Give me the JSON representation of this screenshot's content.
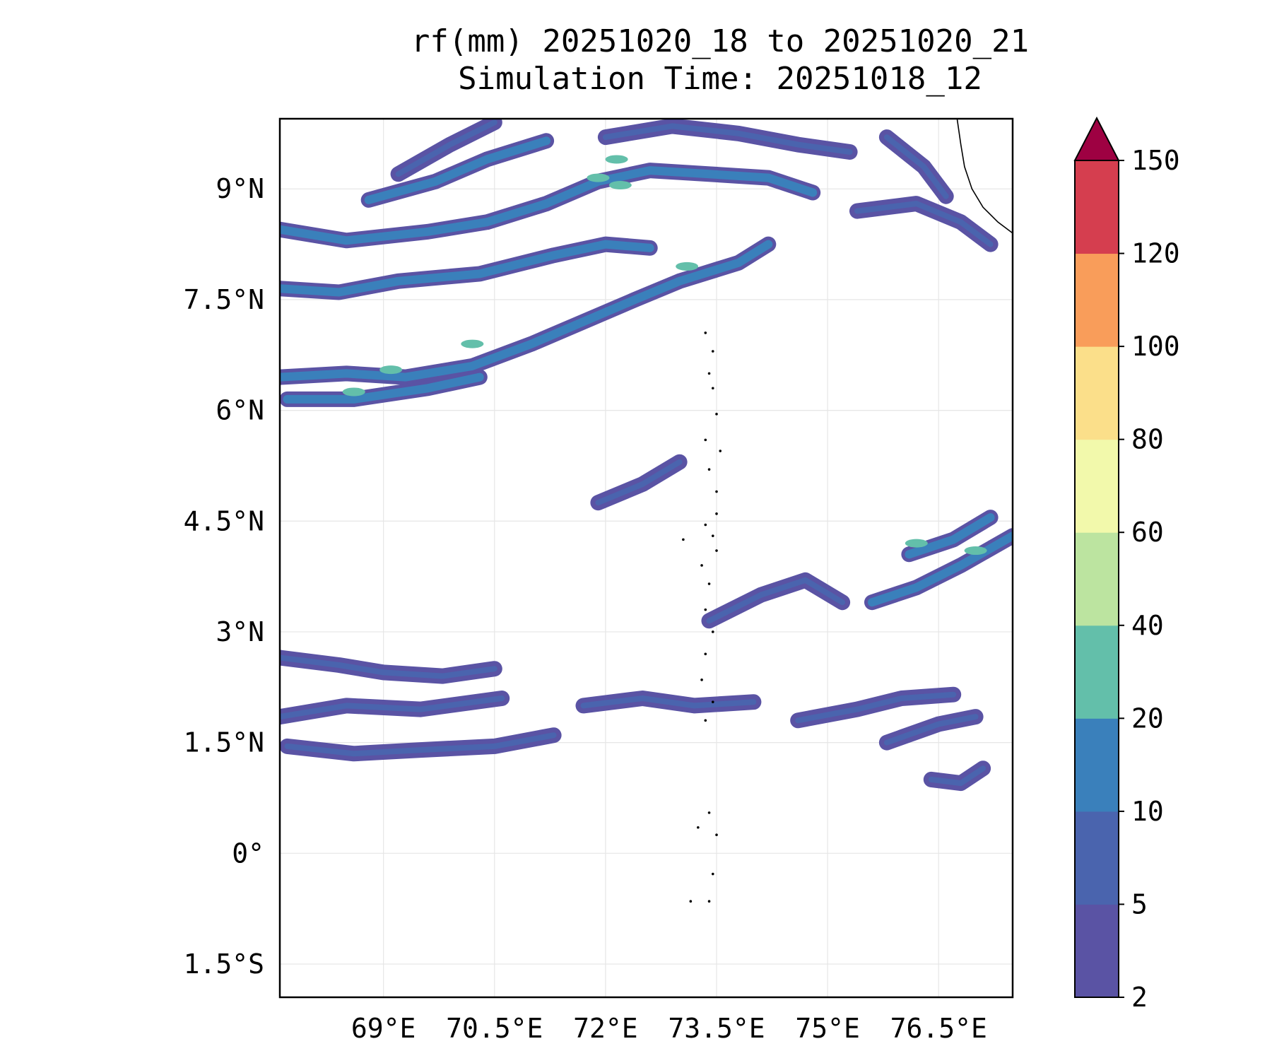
{
  "title": {
    "line1": "rf(mm) 20251020_18 to 20251020_21",
    "line2": "Simulation Time: 20251018_12"
  },
  "map": {
    "lon_range": [
      67.6,
      77.5
    ],
    "lat_range": [
      -1.95,
      9.95
    ],
    "lon_ticks": [
      {
        "value": 69.0,
        "label": "69°E"
      },
      {
        "value": 70.5,
        "label": "70.5°E"
      },
      {
        "value": 72.0,
        "label": "72°E"
      },
      {
        "value": 73.5,
        "label": "73.5°E"
      },
      {
        "value": 75.0,
        "label": "75°E"
      },
      {
        "value": 76.5,
        "label": "76.5°E"
      }
    ],
    "lat_ticks": [
      {
        "value": 9.0,
        "label": "9°N"
      },
      {
        "value": 7.5,
        "label": "7.5°N"
      },
      {
        "value": 6.0,
        "label": "6°N"
      },
      {
        "value": 4.5,
        "label": "4.5°N"
      },
      {
        "value": 3.0,
        "label": "3°N"
      },
      {
        "value": 1.5,
        "label": "1.5°N"
      },
      {
        "value": 0.0,
        "label": "0°"
      },
      {
        "value": -1.5,
        "label": "1.5°S"
      }
    ]
  },
  "colorbar": {
    "levels": [
      "2",
      "5",
      "10",
      "20",
      "40",
      "60",
      "80",
      "100",
      "120",
      "150"
    ],
    "colors": [
      "#5a53a4",
      "#4a64ae",
      "#3a80bb",
      "#63bfaa",
      "#bce4a0",
      "#f2f9ab",
      "#fbdf8a",
      "#f99d5a",
      "#d53e4f"
    ],
    "extend_color": "#9e0142",
    "extend": "max"
  },
  "chart_data": {
    "type": "contour-map",
    "variable": "rf(mm)",
    "rain_bands": [
      {
        "name": "northern-band-1",
        "points": [
          [
            67.6,
            8.45
          ],
          [
            68.5,
            8.3
          ],
          [
            69.6,
            8.42
          ],
          [
            70.4,
            8.55
          ],
          [
            71.2,
            8.8
          ],
          [
            71.9,
            9.1
          ],
          [
            72.6,
            9.25
          ],
          [
            73.4,
            9.2
          ],
          [
            74.2,
            9.15
          ],
          [
            74.8,
            8.95
          ]
        ],
        "intensity": 10
      },
      {
        "name": "northern-band-2",
        "points": [
          [
            67.6,
            7.65
          ],
          [
            68.4,
            7.6
          ],
          [
            69.2,
            7.75
          ],
          [
            70.3,
            7.85
          ],
          [
            71.3,
            8.1
          ],
          [
            72.0,
            8.25
          ],
          [
            72.6,
            8.2
          ]
        ],
        "intensity": 10
      },
      {
        "name": "northern-band-3",
        "points": [
          [
            67.6,
            6.45
          ],
          [
            68.5,
            6.5
          ],
          [
            69.3,
            6.45
          ],
          [
            70.2,
            6.6
          ],
          [
            71.0,
            6.9
          ],
          [
            71.7,
            7.2
          ],
          [
            72.4,
            7.5
          ],
          [
            73.0,
            7.75
          ],
          [
            73.8,
            8.0
          ],
          [
            74.2,
            8.25
          ]
        ],
        "intensity": 10
      },
      {
        "name": "northern-band-4",
        "points": [
          [
            67.7,
            6.15
          ],
          [
            68.6,
            6.15
          ],
          [
            69.6,
            6.3
          ],
          [
            70.3,
            6.45
          ]
        ],
        "intensity": 10
      },
      {
        "name": "northern-band-5",
        "points": [
          [
            68.8,
            8.85
          ],
          [
            69.7,
            9.1
          ],
          [
            70.4,
            9.4
          ],
          [
            71.2,
            9.65
          ]
        ],
        "intensity": 10
      },
      {
        "name": "northern-band-6",
        "points": [
          [
            69.2,
            9.2
          ],
          [
            69.9,
            9.6
          ],
          [
            70.5,
            9.9
          ]
        ],
        "intensity": 5
      },
      {
        "name": "northern-band-7",
        "points": [
          [
            72.0,
            9.7
          ],
          [
            72.9,
            9.85
          ],
          [
            73.8,
            9.75
          ],
          [
            74.6,
            9.6
          ],
          [
            75.3,
            9.5
          ]
        ],
        "intensity": 5
      },
      {
        "name": "northern-band-8",
        "points": [
          [
            75.4,
            8.7
          ],
          [
            76.2,
            8.8
          ],
          [
            76.8,
            8.55
          ],
          [
            77.2,
            8.25
          ]
        ],
        "intensity": 5
      },
      {
        "name": "northern-band-9",
        "points": [
          [
            75.8,
            9.7
          ],
          [
            76.3,
            9.3
          ],
          [
            76.6,
            8.9
          ]
        ],
        "intensity": 5
      },
      {
        "name": "central-streak",
        "points": [
          [
            71.9,
            4.75
          ],
          [
            72.5,
            5.0
          ],
          [
            73.0,
            5.3
          ]
        ],
        "intensity": 5
      },
      {
        "name": "southern-band-1",
        "points": [
          [
            75.6,
            3.4
          ],
          [
            76.2,
            3.6
          ],
          [
            76.8,
            3.9
          ],
          [
            77.5,
            4.3
          ]
        ],
        "intensity": 10
      },
      {
        "name": "southern-band-2",
        "points": [
          [
            76.1,
            4.05
          ],
          [
            76.7,
            4.25
          ],
          [
            77.2,
            4.55
          ]
        ],
        "intensity": 10
      },
      {
        "name": "southern-band-3",
        "points": [
          [
            73.4,
            3.15
          ],
          [
            74.1,
            3.5
          ],
          [
            74.7,
            3.7
          ],
          [
            75.2,
            3.4
          ]
        ],
        "intensity": 5
      },
      {
        "name": "southern-band-4",
        "points": [
          [
            67.6,
            2.65
          ],
          [
            68.4,
            2.55
          ],
          [
            69.0,
            2.45
          ],
          [
            69.8,
            2.4
          ],
          [
            70.5,
            2.5
          ]
        ],
        "intensity": 5
      },
      {
        "name": "southern-band-5",
        "points": [
          [
            67.6,
            1.85
          ],
          [
            68.5,
            2.0
          ],
          [
            69.5,
            1.95
          ],
          [
            70.6,
            2.1
          ]
        ],
        "intensity": 5
      },
      {
        "name": "southern-band-6",
        "points": [
          [
            67.7,
            1.45
          ],
          [
            68.6,
            1.35
          ],
          [
            69.5,
            1.4
          ],
          [
            70.5,
            1.45
          ],
          [
            71.3,
            1.6
          ]
        ],
        "intensity": 5
      },
      {
        "name": "southern-band-7",
        "points": [
          [
            71.7,
            2.0
          ],
          [
            72.5,
            2.1
          ],
          [
            73.2,
            2.0
          ],
          [
            74.0,
            2.05
          ]
        ],
        "intensity": 5
      },
      {
        "name": "southern-band-8",
        "points": [
          [
            74.6,
            1.8
          ],
          [
            75.4,
            1.95
          ],
          [
            76.0,
            2.1
          ],
          [
            76.7,
            2.15
          ]
        ],
        "intensity": 5
      },
      {
        "name": "southern-band-9",
        "points": [
          [
            75.8,
            1.5
          ],
          [
            76.5,
            1.75
          ],
          [
            77.0,
            1.85
          ]
        ],
        "intensity": 5
      },
      {
        "name": "southern-band-10",
        "points": [
          [
            76.4,
            1.0
          ],
          [
            76.8,
            0.95
          ],
          [
            77.1,
            1.15
          ]
        ],
        "intensity": 5
      }
    ],
    "core_cells": [
      {
        "lon": 68.6,
        "lat": 6.25,
        "intensity": 20
      },
      {
        "lon": 69.1,
        "lat": 6.55,
        "intensity": 20
      },
      {
        "lon": 70.2,
        "lat": 6.9,
        "intensity": 20
      },
      {
        "lon": 71.9,
        "lat": 9.15,
        "intensity": 20
      },
      {
        "lon": 72.2,
        "lat": 9.05,
        "intensity": 20
      },
      {
        "lon": 72.15,
        "lat": 9.4,
        "intensity": 20
      },
      {
        "lon": 73.1,
        "lat": 7.95,
        "intensity": 20
      },
      {
        "lon": 76.2,
        "lat": 4.2,
        "intensity": 20
      },
      {
        "lon": 77.0,
        "lat": 4.1,
        "intensity": 20
      }
    ],
    "coastline": [
      [
        76.75,
        9.95
      ],
      [
        76.8,
        9.6
      ],
      [
        76.85,
        9.3
      ],
      [
        76.95,
        9.0
      ],
      [
        77.1,
        8.75
      ],
      [
        77.3,
        8.55
      ],
      [
        77.5,
        8.4
      ],
      [
        77.6,
        8.3
      ]
    ],
    "islands": [
      [
        73.35,
        7.05
      ],
      [
        73.45,
        6.8
      ],
      [
        73.4,
        6.5
      ],
      [
        73.45,
        6.3
      ],
      [
        73.5,
        5.95
      ],
      [
        73.35,
        5.6
      ],
      [
        73.55,
        5.45
      ],
      [
        73.4,
        5.2
      ],
      [
        73.5,
        4.9
      ],
      [
        73.5,
        4.6
      ],
      [
        73.45,
        4.3
      ],
      [
        73.5,
        4.1
      ],
      [
        73.3,
        3.9
      ],
      [
        73.4,
        3.65
      ],
      [
        73.35,
        3.3
      ],
      [
        73.45,
        3.0
      ],
      [
        73.35,
        2.7
      ],
      [
        73.3,
        2.35
      ],
      [
        73.45,
        2.05
      ],
      [
        73.35,
        1.8
      ],
      [
        73.4,
        0.55
      ],
      [
        73.25,
        0.35
      ],
      [
        73.5,
        0.25
      ],
      [
        73.4,
        -0.65
      ],
      [
        73.15,
        -0.65
      ],
      [
        73.45,
        -0.28
      ],
      [
        73.05,
        4.25
      ],
      [
        73.35,
        4.45
      ]
    ]
  }
}
